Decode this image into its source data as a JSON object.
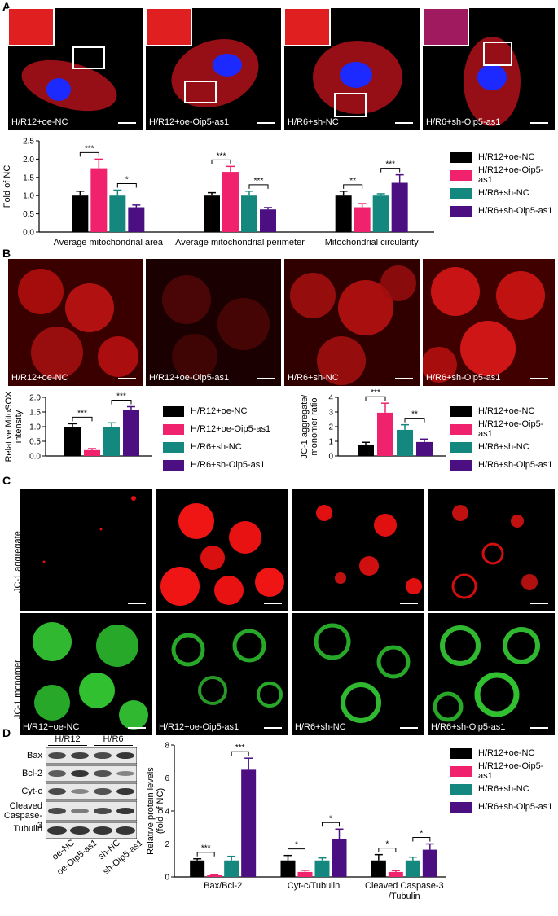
{
  "colors": {
    "black": "#000000",
    "pink": "#f0226e",
    "teal": "#14887e",
    "purple": "#4b0f82"
  },
  "panels": {
    "a": "A",
    "b": "B",
    "c": "C",
    "d": "D"
  },
  "legend": [
    "H/R12+oe-NC",
    "H/R12+oe-Oip5-as1",
    "H/R6+sh-NC",
    "H/R6+sh-Oip5-as1"
  ],
  "panelA": {
    "image_labels": [
      "H/R12+oe-NC",
      "H/R12+oe-Oip5-as1",
      "H/R6+sh-NC",
      "H/R6+sh-Oip5-as1"
    ],
    "scale": "10 µm"
  },
  "panelB": {
    "image_labels": [
      "H/R12+oe-NC",
      "H/R12+oe-Oip5-as1",
      "H/R6+sh-NC",
      "H/R6+sh-Oip5-as1"
    ],
    "scale": "200 µm"
  },
  "panelC": {
    "row_labels": [
      "JC-1 aggregate",
      "JC-1 monomer"
    ],
    "image_labels": [
      "H/R12+oe-NC",
      "H/R12+oe-Oip5-as1",
      "H/R6+sh-NC",
      "H/R6+sh-Oip5-as1"
    ],
    "scale": "200 µm"
  },
  "panelD": {
    "groups": [
      "H/R12",
      "H/R6"
    ],
    "bands": [
      "Bax",
      "Bcl-2",
      "Cyt-c",
      "Cleaved Caspase-3",
      "Tubulin"
    ],
    "lanes": [
      "oe-NC",
      "oe-Oip5-as1",
      "sh-NC",
      "sh-Oip5-as1"
    ]
  },
  "chart_data": [
    {
      "type": "bar",
      "ylabel": "Fold of NC",
      "ylim": [
        0,
        2.5
      ],
      "yticks": [
        "0.0",
        "0.5",
        "1.0",
        "1.5",
        "2.0",
        "2.5"
      ],
      "categories": [
        "Average mitochondrial area",
        "Average mitochondrial perimeter",
        "Mitochondrial circularity"
      ],
      "series": [
        {
          "name": "H/R12+oe-NC",
          "values": [
            1.0,
            1.0,
            1.0
          ],
          "errors": [
            0.12,
            0.08,
            0.12
          ]
        },
        {
          "name": "H/R12+oe-Oip5-as1",
          "values": [
            1.75,
            1.65,
            0.68
          ],
          "errors": [
            0.25,
            0.15,
            0.1
          ]
        },
        {
          "name": "H/R6+sh-NC",
          "values": [
            1.0,
            1.0,
            1.0
          ],
          "errors": [
            0.15,
            0.12,
            0.05
          ]
        },
        {
          "name": "H/R6+sh-Oip5-as1",
          "values": [
            0.68,
            0.62,
            1.35
          ],
          "errors": [
            0.06,
            0.05,
            0.22
          ]
        }
      ],
      "significance": [
        [
          "***",
          "*"
        ],
        [
          "***",
          "***"
        ],
        [
          "**",
          "***"
        ]
      ]
    },
    {
      "type": "bar",
      "ylabel": "Relative MitoSOX intensity",
      "ylim": [
        0,
        2.0
      ],
      "yticks": [
        "0.0",
        "0.5",
        "1.0",
        "1.5",
        "2.0"
      ],
      "categories": [
        ""
      ],
      "series": [
        {
          "name": "H/R12+oe-NC",
          "values": [
            1.0
          ],
          "errors": [
            0.1
          ]
        },
        {
          "name": "H/R12+oe-Oip5-as1",
          "values": [
            0.2
          ],
          "errors": [
            0.05
          ]
        },
        {
          "name": "H/R6+sh-NC",
          "values": [
            1.0
          ],
          "errors": [
            0.13
          ]
        },
        {
          "name": "H/R6+sh-Oip5-as1",
          "values": [
            1.58
          ],
          "errors": [
            0.1
          ]
        }
      ],
      "significance": [
        [
          "***",
          "***"
        ]
      ]
    },
    {
      "type": "bar",
      "ylabel": "JC-1 aggregate/ monomer ratio",
      "ylim": [
        0,
        4
      ],
      "yticks": [
        "0",
        "1",
        "2",
        "3",
        "4"
      ],
      "categories": [
        ""
      ],
      "series": [
        {
          "name": "H/R12+oe-NC",
          "values": [
            0.78
          ],
          "errors": [
            0.15
          ]
        },
        {
          "name": "H/R12+oe-Oip5-as1",
          "values": [
            2.95
          ],
          "errors": [
            0.65
          ]
        },
        {
          "name": "H/R6+sh-NC",
          "values": [
            1.78
          ],
          "errors": [
            0.35
          ]
        },
        {
          "name": "H/R6+sh-Oip5-as1",
          "values": [
            0.95
          ],
          "errors": [
            0.2
          ]
        }
      ],
      "significance": [
        [
          "***",
          "**"
        ]
      ]
    },
    {
      "type": "bar",
      "ylabel": "Relative protein levels (fold of NC)",
      "ylim": [
        0,
        8
      ],
      "yticks": [
        "0",
        "2",
        "4",
        "6",
        "8"
      ],
      "categories": [
        "Bax/Bcl-2",
        "Cyt-c/Tubulin",
        "Cleaved Caspase-3 /Tubulin"
      ],
      "series": [
        {
          "name": "H/R12+oe-NC",
          "values": [
            1.0,
            1.0,
            1.0
          ],
          "errors": [
            0.1,
            0.3,
            0.35
          ]
        },
        {
          "name": "H/R12+oe-Oip5-as1",
          "values": [
            0.1,
            0.3,
            0.3
          ],
          "errors": [
            0.03,
            0.1,
            0.08
          ]
        },
        {
          "name": "H/R6+sh-NC",
          "values": [
            1.0,
            1.0,
            1.0
          ],
          "errors": [
            0.25,
            0.15,
            0.2
          ]
        },
        {
          "name": "H/R6+sh-Oip5-as1",
          "values": [
            6.5,
            2.3,
            1.65
          ],
          "errors": [
            0.7,
            0.6,
            0.35
          ]
        }
      ],
      "significance": [
        [
          "***",
          "***"
        ],
        [
          "*",
          "*"
        ],
        [
          "*",
          "*"
        ]
      ]
    }
  ]
}
